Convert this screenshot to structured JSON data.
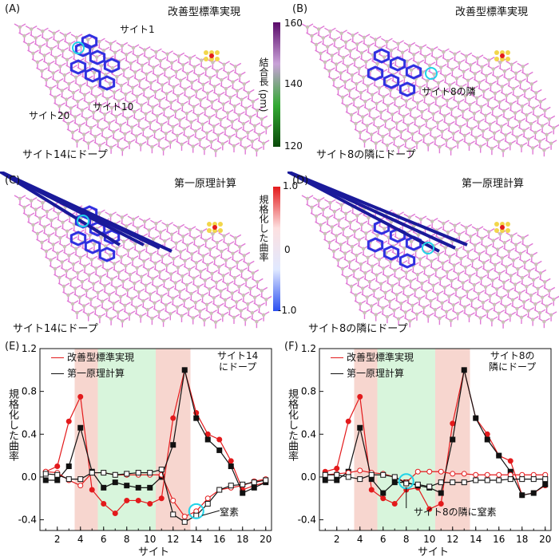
{
  "colors": {
    "red": "#e31a1c",
    "black": "#111111",
    "pink": "#f7d6cf",
    "green": "#d8f5dc",
    "lattice": "#e07ad6",
    "node": "#c9c3b8",
    "ring": "#3030e0",
    "ring_dark": "#1a1a9a",
    "cyan": "#1fd3e8",
    "yellow": "#f2d64b"
  },
  "panels": [
    {
      "id": "A",
      "letter": "(A)",
      "title": "改善型標準実現",
      "caption": "サイト14にドープ",
      "labels": [
        "サイト1",
        "サイト10",
        "サイト20"
      ]
    },
    {
      "id": "B",
      "letter": "(B)",
      "title": "改善型標準実現",
      "caption": "サイト8の隣にドープ",
      "labels": [
        "サイト8の隣"
      ]
    },
    {
      "id": "C",
      "letter": "(C)",
      "title": "第一原理計算",
      "caption": "サイト14にドープ",
      "labels": []
    },
    {
      "id": "D",
      "letter": "(D)",
      "title": "第一原理計算",
      "caption": "サイト8の隣にドープ",
      "labels": []
    }
  ],
  "colorbars": [
    {
      "label": "結合長 (pm)",
      "ticks": [
        "160",
        "140",
        "120"
      ],
      "colors": [
        "#5a0a6a",
        "#c9a2d8",
        "#33aa33",
        "#0a4a0a"
      ]
    },
    {
      "label": "規格化した曲率",
      "ticks": [
        "1.0",
        "0",
        "-1.0"
      ],
      "colors": [
        "#e31a1c",
        "#fde0e0",
        "#e0e8ff",
        "#2b4ff0"
      ]
    }
  ],
  "chart_data": [
    {
      "id": "E",
      "letter": "(E)",
      "type": "line",
      "xlabel": "サイト",
      "ylabel": "規格化した曲率",
      "xlim": [
        0.5,
        20.5
      ],
      "ylim": [
        -0.5,
        1.2
      ],
      "xticks": [
        2,
        4,
        6,
        8,
        10,
        12,
        14,
        16,
        18,
        20
      ],
      "yticks": [
        -0.4,
        0.0,
        0.4,
        0.8,
        1.2
      ],
      "ytick_labels": [
        "-0.4",
        "0.0",
        "0.4",
        "0.8",
        "1.2"
      ],
      "legend": [
        "改善型標準実現",
        "第一原理計算"
      ],
      "note": "サイト14\nにドープ",
      "annotation": "窒素",
      "bands": [
        {
          "from": 3.5,
          "to": 5.5,
          "color": "pink"
        },
        {
          "from": 5.5,
          "to": 10.5,
          "color": "green"
        },
        {
          "from": 10.5,
          "to": 13.5,
          "color": "pink"
        }
      ],
      "x": [
        1,
        2,
        3,
        4,
        5,
        6,
        7,
        8,
        9,
        10,
        11,
        12,
        13,
        14,
        15,
        16,
        17,
        18,
        19,
        20
      ],
      "series": [
        {
          "name": "改善型標準実現",
          "color": "red",
          "marker": "filled-circle",
          "values": [
            0.05,
            0.1,
            0.52,
            0.75,
            -0.12,
            -0.25,
            -0.34,
            -0.22,
            -0.22,
            -0.25,
            -0.2,
            0.55,
            1.0,
            0.6,
            0.4,
            0.35,
            0.15,
            -0.12,
            -0.08,
            -0.05
          ]
        },
        {
          "name": "第一原理計算",
          "color": "black",
          "marker": "filled-square",
          "values": [
            -0.03,
            -0.03,
            0.1,
            0.46,
            0.05,
            -0.1,
            -0.05,
            -0.08,
            -0.1,
            -0.1,
            0.0,
            0.3,
            1.0,
            0.55,
            0.35,
            0.25,
            0.1,
            -0.15,
            -0.1,
            -0.05
          ]
        },
        {
          "name": "改善型標準実現",
          "color": "red",
          "marker": "open-circle",
          "values": [
            0.05,
            0.04,
            -0.03,
            -0.08,
            0.04,
            0.04,
            0.02,
            0.02,
            0.02,
            0.02,
            0.02,
            -0.22,
            -0.37,
            -0.32,
            -0.2,
            -0.12,
            -0.1,
            -0.08,
            -0.04,
            -0.02
          ]
        },
        {
          "name": "第一原理計算",
          "color": "black",
          "marker": "open-square",
          "values": [
            0.03,
            0.02,
            -0.02,
            -0.02,
            0.04,
            0.04,
            0.02,
            0.03,
            0.04,
            0.04,
            0.07,
            -0.35,
            -0.42,
            -0.36,
            -0.25,
            -0.12,
            -0.08,
            -0.07,
            -0.05,
            -0.03
          ]
        }
      ]
    },
    {
      "id": "F",
      "letter": "(F)",
      "type": "line",
      "xlabel": "サイト",
      "ylabel": "規格化した曲率",
      "xlim": [
        0.5,
        20.5
      ],
      "ylim": [
        -0.5,
        1.2
      ],
      "xticks": [
        2,
        4,
        6,
        8,
        10,
        12,
        14,
        16,
        18,
        20
      ],
      "yticks": [
        -0.4,
        0.0,
        0.4,
        0.8,
        1.2
      ],
      "ytick_labels": [
        "-0.4",
        "0.0",
        "0.4",
        "0.8",
        "1.2"
      ],
      "legend": [
        "改善型標準実現",
        "第一原理計算"
      ],
      "note": "サイト8の\n隣にドープ",
      "annotation": "サイト8の隣に窒素",
      "bands": [
        {
          "from": 3.5,
          "to": 5.5,
          "color": "pink"
        },
        {
          "from": 5.5,
          "to": 10.5,
          "color": "green"
        },
        {
          "from": 10.5,
          "to": 13.5,
          "color": "pink"
        }
      ],
      "x": [
        1,
        2,
        3,
        4,
        5,
        6,
        7,
        8,
        9,
        10,
        11,
        12,
        13,
        14,
        15,
        16,
        17,
        18,
        19,
        20
      ],
      "series": [
        {
          "name": "改善型標準実現",
          "color": "red",
          "marker": "filled-circle",
          "values": [
            0.05,
            0.08,
            0.52,
            0.75,
            -0.12,
            -0.2,
            -0.25,
            -0.12,
            -0.1,
            -0.3,
            -0.25,
            0.5,
            1.0,
            0.55,
            0.4,
            0.2,
            0.15,
            -0.17,
            -0.15,
            -0.08
          ]
        },
        {
          "name": "第一原理計算",
          "color": "black",
          "marker": "filled-square",
          "values": [
            -0.03,
            -0.03,
            0.05,
            0.46,
            -0.02,
            -0.15,
            -0.05,
            -0.05,
            -0.08,
            -0.1,
            -0.15,
            0.35,
            1.0,
            0.55,
            0.35,
            0.2,
            0.05,
            -0.17,
            -0.15,
            -0.07
          ]
        },
        {
          "name": "改善型標準実現",
          "color": "red",
          "marker": "open-circle",
          "values": [
            0.02,
            0.03,
            0.04,
            0.06,
            0.04,
            0.03,
            0.0,
            -0.05,
            0.05,
            0.05,
            0.05,
            0.03,
            0.03,
            0.02,
            0.02,
            0.02,
            0.02,
            0.02,
            0.02,
            0.02
          ]
        },
        {
          "name": "第一原理計算",
          "color": "black",
          "marker": "open-square",
          "values": [
            0.02,
            0.02,
            0.0,
            -0.02,
            0.02,
            0.02,
            0.0,
            -0.06,
            -0.07,
            -0.09,
            -0.05,
            -0.05,
            -0.05,
            -0.03,
            -0.03,
            -0.03,
            -0.02,
            -0.02,
            -0.02,
            -0.02
          ]
        }
      ]
    }
  ]
}
